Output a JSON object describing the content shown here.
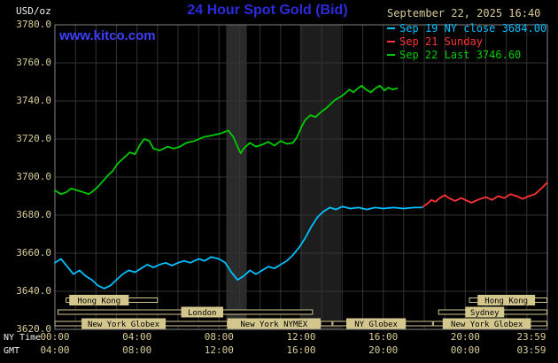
{
  "header": {
    "unit_label": "USD/oz",
    "title": "24 Hour Spot Gold (Bid)",
    "watermark": "www.kitco.com",
    "timestamp": "September 22, 2025 16:40"
  },
  "legend": [
    {
      "label": "Sep 19 NY close 3684.00",
      "color": "#00bfff"
    },
    {
      "label": "Sep 21 Sunday",
      "color": "#ff3333"
    },
    {
      "label": "Sep 22 Last 3746.60",
      "color": "#00cc00"
    }
  ],
  "axes": {
    "ny_label": "NY Time",
    "gmt_label": "GMT",
    "y_ticks": [
      {
        "value": 3780,
        "label": "3780.0"
      },
      {
        "value": 3760,
        "label": "3760.0"
      },
      {
        "value": 3740,
        "label": "3740.0"
      },
      {
        "value": 3720,
        "label": "3720.0"
      },
      {
        "value": 3700,
        "label": "3700.0"
      },
      {
        "value": 3680,
        "label": "3680.0"
      },
      {
        "value": 3660,
        "label": "3660.0"
      },
      {
        "value": 3640,
        "label": "3640.0"
      },
      {
        "value": 3620,
        "label": "3620.0"
      }
    ],
    "x_ticks_ny": [
      {
        "hour": 0,
        "label": "00:00"
      },
      {
        "hour": 4,
        "label": "04:00"
      },
      {
        "hour": 8,
        "label": "08:00"
      },
      {
        "hour": 12,
        "label": "12:00"
      },
      {
        "hour": 16,
        "label": "16:00"
      },
      {
        "hour": 20,
        "label": "20:00"
      },
      {
        "hour": 23.983,
        "label": "23:59"
      }
    ],
    "x_ticks_gmt": [
      {
        "hour": 0,
        "label": "04:00"
      },
      {
        "hour": 4,
        "label": "08:00"
      },
      {
        "hour": 8,
        "label": "12:00"
      },
      {
        "hour": 12,
        "label": "16:00"
      },
      {
        "hour": 16,
        "label": "20:00"
      },
      {
        "hour": 20,
        "label": "00:00"
      },
      {
        "hour": 23.983,
        "label": "03:59"
      }
    ]
  },
  "colors": {
    "background": "#000000",
    "grid": "#333333",
    "frame": "#828282",
    "tan": "#d8cc96",
    "session": "#d4c78e",
    "title_blue": "#2b2bdd",
    "link_blue": "#3f3fff"
  },
  "sessions": [
    {
      "row": 1,
      "start": 0.55,
      "end": 5.0,
      "label": "Hong Kong",
      "label_start": 0.7,
      "label_end": 3.6
    },
    {
      "row": 1,
      "start": 20.2,
      "end": 23.98,
      "label": "Hong Kong",
      "label_start": 20.6,
      "label_end": 23.4
    },
    {
      "row": 2,
      "start": 0.15,
      "end": 12.55,
      "label": "London",
      "label_start": 6.15,
      "label_end": 8.2
    },
    {
      "row": 2,
      "start": 18.7,
      "end": 23.98,
      "label": "Sydney",
      "label_start": 20.0,
      "label_end": 21.9
    },
    {
      "row": 3,
      "start": 0.0,
      "end": 13.5,
      "label": "New York Globex",
      "label_start": 1.3,
      "label_end": 5.4
    },
    {
      "row": 3,
      "start": 8.4,
      "end": 12.95,
      "label": "New York NYMEX",
      "label_start": 8.4,
      "label_end": 12.95
    },
    {
      "row": 3,
      "start": 13.55,
      "end": 18.4,
      "label": "NY Globex",
      "label_start": 14.2,
      "label_end": 17.1
    },
    {
      "row": 3,
      "start": 18.45,
      "end": 23.98,
      "label": "New York Globex",
      "label_start": 18.9,
      "label_end": 23.2
    }
  ],
  "chart_data": {
    "type": "line",
    "title": "24 Hour Spot Gold (Bid)",
    "ylabel": "USD/oz",
    "xlabel": "NY Time (hours)",
    "ylim": [
      3620,
      3780
    ],
    "xlim": [
      0,
      24
    ],
    "y_tick_step": 20,
    "grid": true,
    "legend_position": "top-right",
    "bands": [
      {
        "start": 8.35,
        "end": 9.35,
        "color": "#2b2b2b"
      },
      {
        "start": 11.95,
        "end": 13.95,
        "color": "#1d1d1d"
      }
    ],
    "series": [
      {
        "id": "sep19",
        "name": "Sep 19 NY close 3684.00",
        "color": "#00bfff",
        "points": [
          [
            0,
            3655
          ],
          [
            0.3,
            3657
          ],
          [
            0.6,
            3653
          ],
          [
            0.9,
            3649
          ],
          [
            1.2,
            3651
          ],
          [
            1.5,
            3648
          ],
          [
            1.8,
            3646
          ],
          [
            2.1,
            3643
          ],
          [
            2.4,
            3641.5
          ],
          [
            2.7,
            3643
          ],
          [
            3.0,
            3646
          ],
          [
            3.3,
            3649
          ],
          [
            3.6,
            3651
          ],
          [
            3.9,
            3650
          ],
          [
            4.2,
            3652
          ],
          [
            4.5,
            3654
          ],
          [
            4.8,
            3652.5
          ],
          [
            5.1,
            3654
          ],
          [
            5.4,
            3655
          ],
          [
            5.7,
            3653.5
          ],
          [
            6.0,
            3655
          ],
          [
            6.3,
            3656
          ],
          [
            6.6,
            3655
          ],
          [
            7.0,
            3657
          ],
          [
            7.3,
            3656
          ],
          [
            7.6,
            3658
          ],
          [
            8.0,
            3657
          ],
          [
            8.3,
            3655
          ],
          [
            8.6,
            3650
          ],
          [
            8.9,
            3646
          ],
          [
            9.2,
            3648
          ],
          [
            9.5,
            3651
          ],
          [
            9.8,
            3649
          ],
          [
            10.1,
            3651
          ],
          [
            10.4,
            3653
          ],
          [
            10.7,
            3652
          ],
          [
            11.0,
            3654
          ],
          [
            11.3,
            3656
          ],
          [
            11.6,
            3659
          ],
          [
            11.9,
            3663
          ],
          [
            12.2,
            3668
          ],
          [
            12.5,
            3674
          ],
          [
            12.8,
            3679
          ],
          [
            13.1,
            3682
          ],
          [
            13.4,
            3684
          ],
          [
            13.7,
            3683
          ],
          [
            14.0,
            3684.5
          ],
          [
            14.4,
            3683.5
          ],
          [
            14.8,
            3684
          ],
          [
            15.2,
            3683
          ],
          [
            15.6,
            3684
          ],
          [
            16.0,
            3683.5
          ],
          [
            16.5,
            3684
          ],
          [
            17.0,
            3683.5
          ],
          [
            17.5,
            3684
          ],
          [
            17.9,
            3684
          ]
        ]
      },
      {
        "id": "sep21",
        "name": "Sep 21 Sunday",
        "color": "#ff3333",
        "points": [
          [
            17.95,
            3684.5
          ],
          [
            18.15,
            3686
          ],
          [
            18.35,
            3688
          ],
          [
            18.55,
            3687
          ],
          [
            18.75,
            3689
          ],
          [
            19.0,
            3690.5
          ],
          [
            19.2,
            3689
          ],
          [
            19.5,
            3687.5
          ],
          [
            19.8,
            3689
          ],
          [
            20.0,
            3688
          ],
          [
            20.3,
            3686.5
          ],
          [
            20.6,
            3688
          ],
          [
            21.0,
            3689.5
          ],
          [
            21.3,
            3688
          ],
          [
            21.6,
            3690
          ],
          [
            21.9,
            3689
          ],
          [
            22.2,
            3691
          ],
          [
            22.5,
            3690
          ],
          [
            22.8,
            3688.5
          ],
          [
            23.1,
            3690
          ],
          [
            23.4,
            3691
          ],
          [
            23.6,
            3693
          ],
          [
            23.8,
            3695
          ],
          [
            23.98,
            3697
          ]
        ]
      },
      {
        "id": "sep22",
        "name": "Sep 22 Last 3746.60",
        "color": "#00cc00",
        "points": [
          [
            0,
            3693
          ],
          [
            0.3,
            3691
          ],
          [
            0.55,
            3692
          ],
          [
            0.8,
            3694
          ],
          [
            1.1,
            3693
          ],
          [
            1.4,
            3692
          ],
          [
            1.65,
            3691
          ],
          [
            1.9,
            3693
          ],
          [
            2.1,
            3695
          ],
          [
            2.35,
            3698
          ],
          [
            2.6,
            3701
          ],
          [
            2.8,
            3703
          ],
          [
            3.05,
            3707
          ],
          [
            3.35,
            3710
          ],
          [
            3.65,
            3713
          ],
          [
            3.9,
            3712
          ],
          [
            4.15,
            3717
          ],
          [
            4.35,
            3720
          ],
          [
            4.6,
            3719
          ],
          [
            4.8,
            3715
          ],
          [
            5.1,
            3714
          ],
          [
            5.5,
            3716
          ],
          [
            5.8,
            3715
          ],
          [
            6.1,
            3716
          ],
          [
            6.4,
            3718
          ],
          [
            6.8,
            3719
          ],
          [
            7.25,
            3721
          ],
          [
            7.7,
            3722
          ],
          [
            8.1,
            3723
          ],
          [
            8.45,
            3724.5
          ],
          [
            8.7,
            3721
          ],
          [
            8.9,
            3716
          ],
          [
            9.05,
            3712.5
          ],
          [
            9.2,
            3715
          ],
          [
            9.5,
            3718
          ],
          [
            9.8,
            3716
          ],
          [
            10.1,
            3717
          ],
          [
            10.4,
            3718.5
          ],
          [
            10.7,
            3716.5
          ],
          [
            11.0,
            3719
          ],
          [
            11.3,
            3717.5
          ],
          [
            11.6,
            3718
          ],
          [
            11.8,
            3721
          ],
          [
            12.0,
            3726
          ],
          [
            12.2,
            3730
          ],
          [
            12.45,
            3732.5
          ],
          [
            12.7,
            3731.5
          ],
          [
            12.95,
            3734
          ],
          [
            13.2,
            3736
          ],
          [
            13.45,
            3738.5
          ],
          [
            13.65,
            3740.5
          ],
          [
            13.9,
            3742
          ],
          [
            14.15,
            3744
          ],
          [
            14.35,
            3746
          ],
          [
            14.55,
            3744.5
          ],
          [
            14.75,
            3746.5
          ],
          [
            14.95,
            3748
          ],
          [
            15.15,
            3746
          ],
          [
            15.4,
            3744.5
          ],
          [
            15.6,
            3746.5
          ],
          [
            15.85,
            3748
          ],
          [
            16.05,
            3745.5
          ],
          [
            16.25,
            3747
          ],
          [
            16.45,
            3746
          ],
          [
            16.67,
            3746.6
          ]
        ]
      }
    ]
  }
}
